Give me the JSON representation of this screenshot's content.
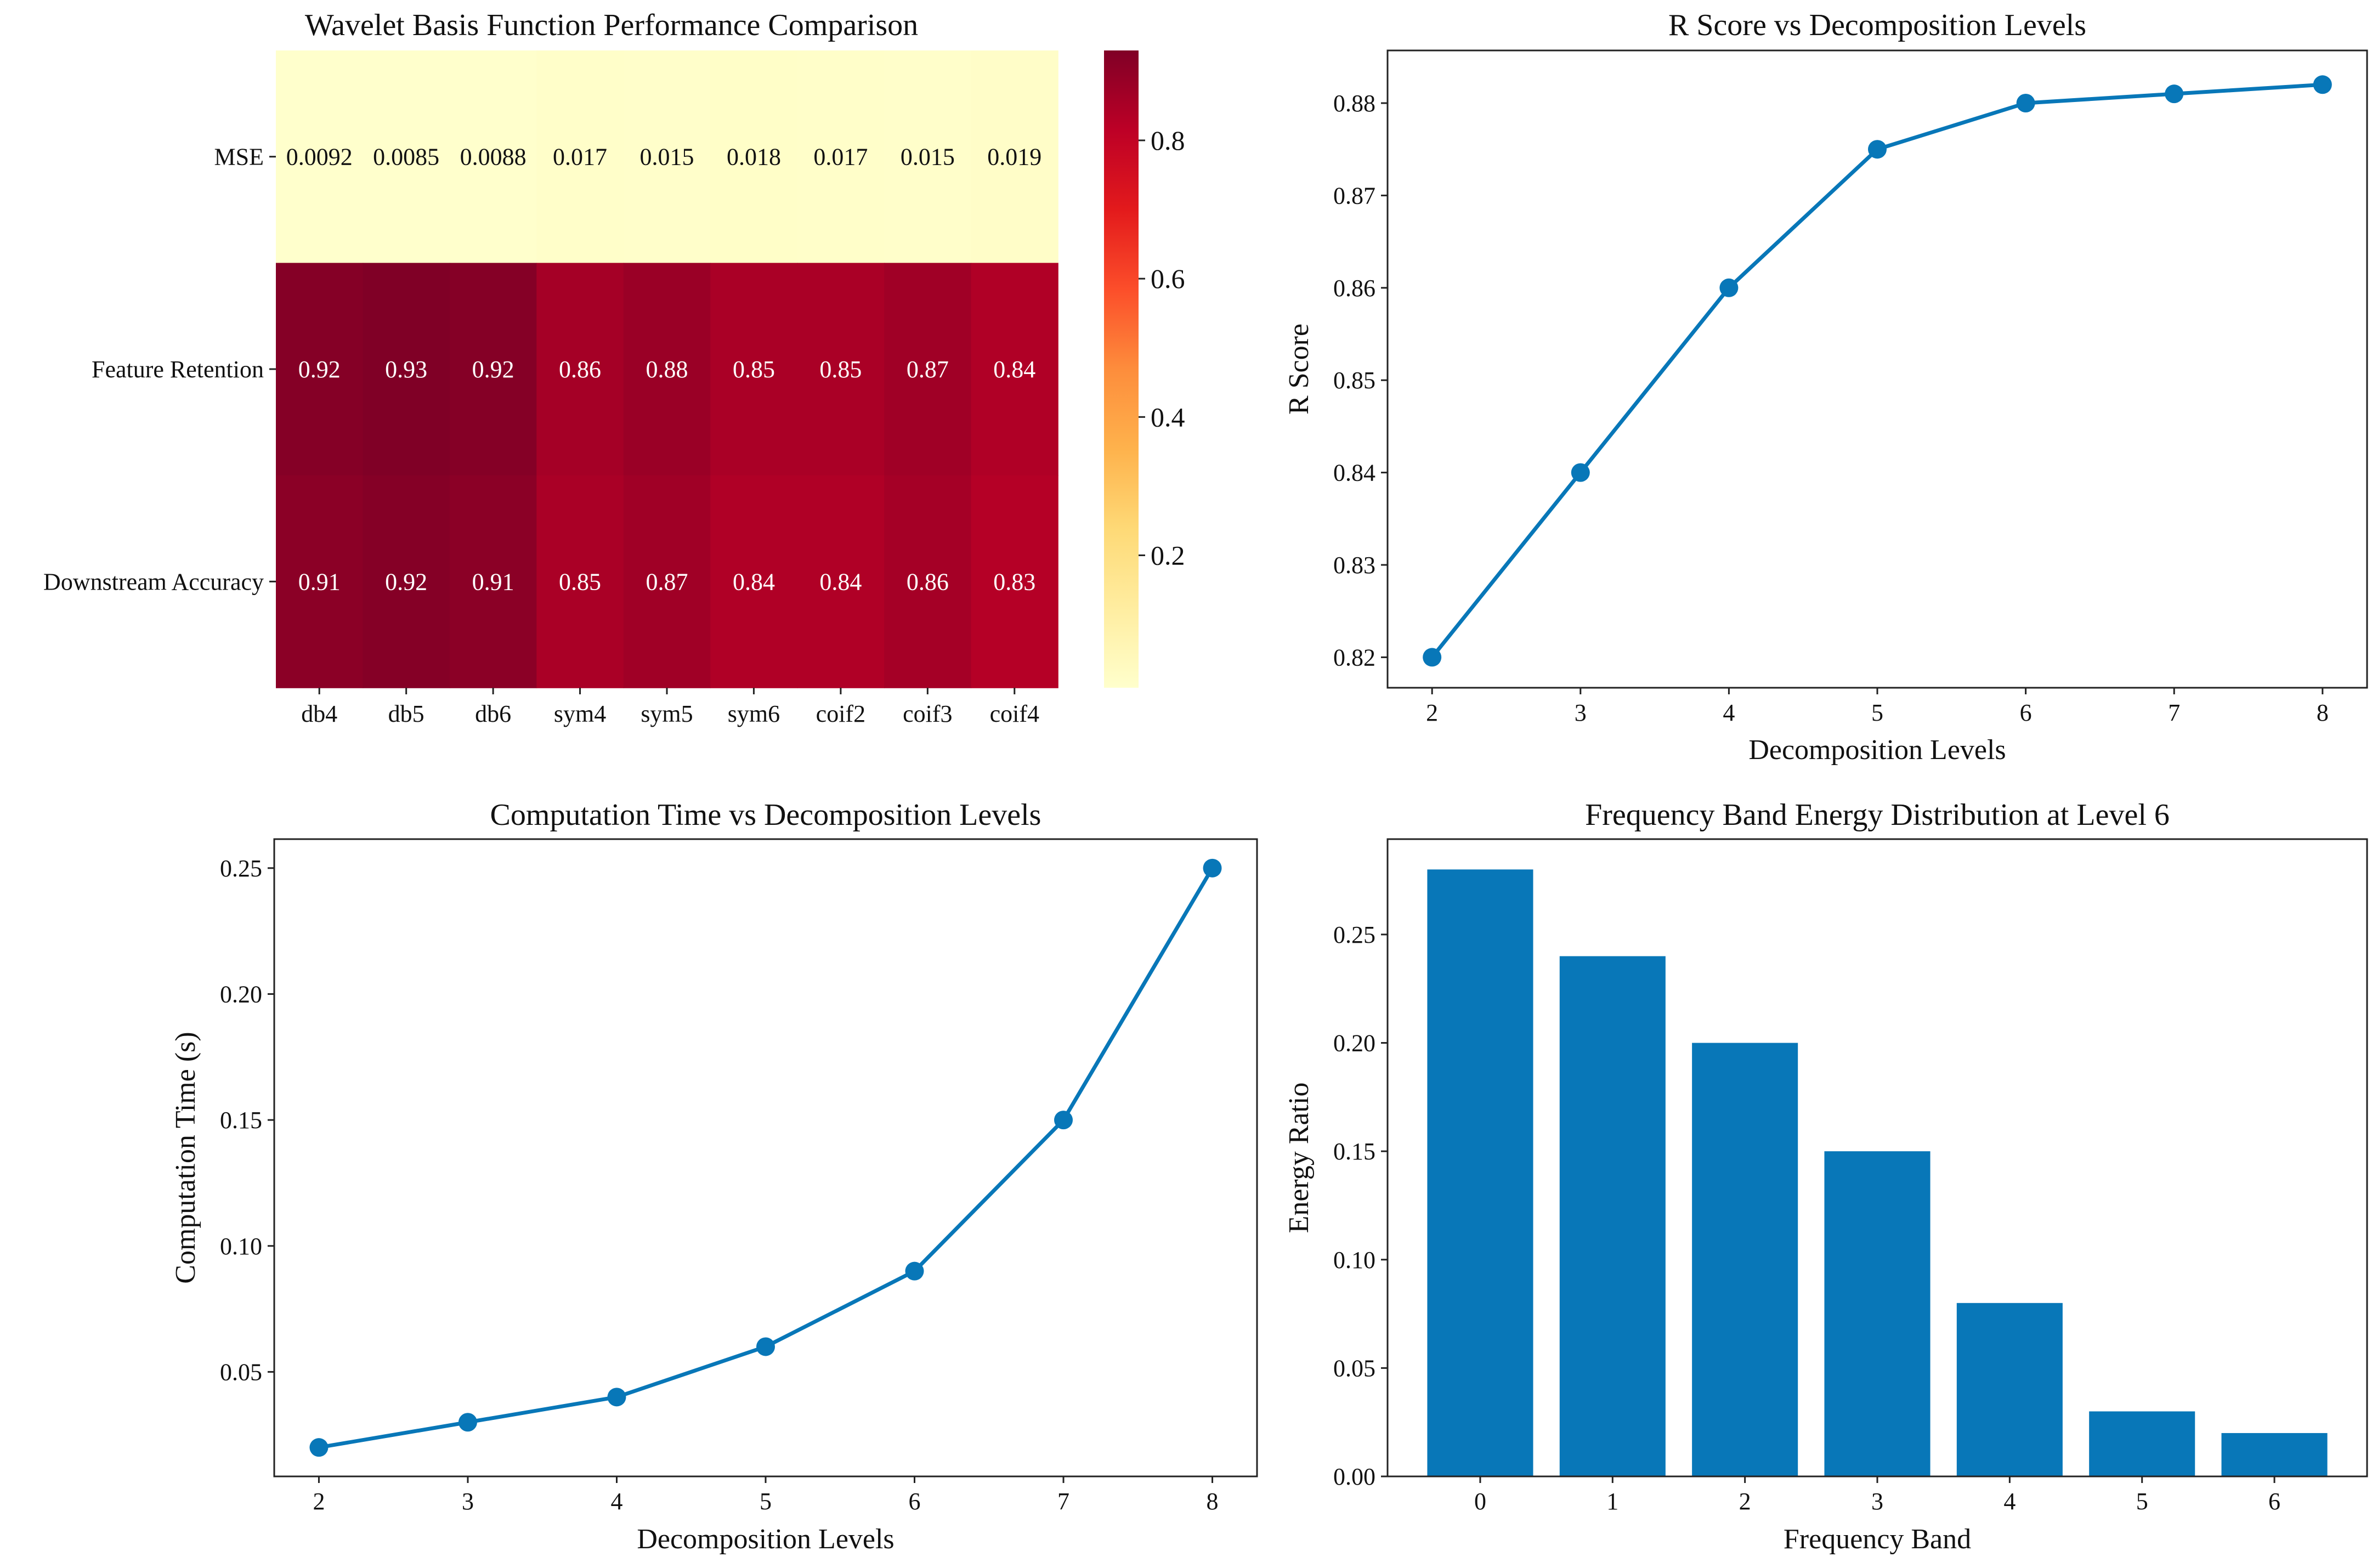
{
  "colors": {
    "series": "#0877b8",
    "axis": "#222222",
    "heat_low": "#ffffcc",
    "heat_mid": "#fd8d3c",
    "heat_high": "#e31a1c",
    "heat_max": "#800026"
  },
  "chart_data": [
    {
      "type": "heatmap",
      "title": "Wavelet Basis Function Performance Comparison",
      "rows": [
        "MSE",
        "Feature Retention",
        "Downstream Accuracy"
      ],
      "columns": [
        "db4",
        "db5",
        "db6",
        "sym4",
        "sym5",
        "sym6",
        "coif2",
        "coif3",
        "coif4"
      ],
      "values": [
        [
          0.0092,
          0.0085,
          0.0088,
          0.017,
          0.015,
          0.018,
          0.017,
          0.015,
          0.019
        ],
        [
          0.92,
          0.93,
          0.92,
          0.86,
          0.88,
          0.85,
          0.85,
          0.87,
          0.84
        ],
        [
          0.91,
          0.92,
          0.91,
          0.85,
          0.87,
          0.84,
          0.84,
          0.86,
          0.83
        ]
      ],
      "labels": [
        [
          "0.0092",
          "0.0085",
          "0.0088",
          "0.017",
          "0.015",
          "0.018",
          "0.017",
          "0.015",
          "0.019"
        ],
        [
          "0.92",
          "0.93",
          "0.92",
          "0.86",
          "0.88",
          "0.85",
          "0.85",
          "0.87",
          "0.84"
        ],
        [
          "0.91",
          "0.92",
          "0.91",
          "0.85",
          "0.87",
          "0.84",
          "0.84",
          "0.86",
          "0.83"
        ]
      ],
      "colormap": "YlOrRd",
      "colorbar": {
        "range": [
          0.0085,
          0.93
        ],
        "ticks": [
          0.2,
          0.4,
          0.6,
          0.8
        ],
        "tick_labels": [
          "0.2",
          "0.4",
          "0.6",
          "0.8"
        ]
      }
    },
    {
      "type": "line",
      "title": "R Score vs Decomposition Levels",
      "xlabel": "Decomposition Levels",
      "ylabel": "R Score",
      "x": [
        2,
        3,
        4,
        5,
        6,
        7,
        8
      ],
      "y": [
        0.82,
        0.84,
        0.86,
        0.875,
        0.88,
        0.881,
        0.882
      ],
      "xlim": [
        1.7,
        8.3
      ],
      "ylim": [
        0.8167,
        0.8857
      ],
      "xticks": [
        2,
        3,
        4,
        5,
        6,
        7,
        8
      ],
      "xtick_labels": [
        "2",
        "3",
        "4",
        "5",
        "6",
        "7",
        "8"
      ],
      "yticks": [
        0.82,
        0.83,
        0.84,
        0.85,
        0.86,
        0.87,
        0.88
      ],
      "ytick_labels": [
        "0.82",
        "0.83",
        "0.84",
        "0.85",
        "0.86",
        "0.87",
        "0.88"
      ]
    },
    {
      "type": "line",
      "title": "Computation Time vs Decomposition Levels",
      "xlabel": "Decomposition Levels",
      "ylabel": "Computation Time (s)",
      "x": [
        2,
        3,
        4,
        5,
        6,
        7,
        8
      ],
      "y": [
        0.02,
        0.03,
        0.04,
        0.06,
        0.09,
        0.15,
        0.25
      ],
      "xlim": [
        1.7,
        8.3
      ],
      "ylim": [
        0.0085,
        0.2615
      ],
      "xticks": [
        2,
        3,
        4,
        5,
        6,
        7,
        8
      ],
      "xtick_labels": [
        "2",
        "3",
        "4",
        "5",
        "6",
        "7",
        "8"
      ],
      "yticks": [
        0.05,
        0.1,
        0.15,
        0.2,
        0.25
      ],
      "ytick_labels": [
        "0.05",
        "0.10",
        "0.15",
        "0.20",
        "0.25"
      ]
    },
    {
      "type": "bar",
      "title": "Frequency Band Energy Distribution at Level 6",
      "xlabel": "Frequency Band",
      "ylabel": "Energy Ratio",
      "categories": [
        "0",
        "1",
        "2",
        "3",
        "4",
        "5",
        "6"
      ],
      "values": [
        0.28,
        0.24,
        0.2,
        0.15,
        0.08,
        0.03,
        0.02
      ],
      "xlim": [
        -0.7,
        6.7
      ],
      "ylim": [
        0,
        0.294
      ],
      "yticks": [
        0,
        0.05,
        0.1,
        0.15,
        0.2,
        0.25
      ],
      "ytick_labels": [
        "0.00",
        "0.05",
        "0.10",
        "0.15",
        "0.20",
        "0.25"
      ]
    }
  ]
}
